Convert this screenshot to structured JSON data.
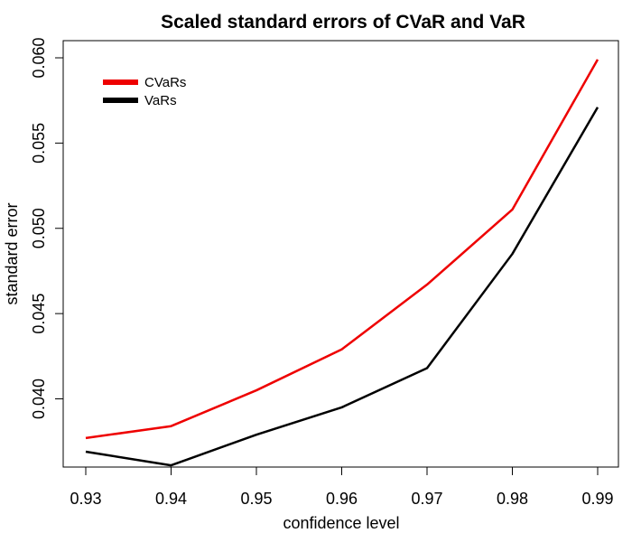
{
  "chart_data": {
    "type": "line",
    "title": "Scaled standard errors of CVaR and VaR",
    "xlabel": "confidence level",
    "ylabel": "standard error",
    "x": [
      0.93,
      0.94,
      0.95,
      0.96,
      0.97,
      0.98,
      0.99
    ],
    "x_ticks": [
      "0.93",
      "0.94",
      "0.95",
      "0.96",
      "0.97",
      "0.98",
      "0.99"
    ],
    "y_ticks": [
      "0.040",
      "0.045",
      "0.050",
      "0.055",
      "0.060"
    ],
    "y_tick_values": [
      0.04,
      0.045,
      0.05,
      0.055,
      0.06
    ],
    "xlim": [
      0.93,
      0.99
    ],
    "ylim": [
      0.036,
      0.06
    ],
    "grid": false,
    "legend_position": "top-left",
    "series": [
      {
        "name": "CVaRs",
        "color": "#ee0000",
        "values": [
          0.0377,
          0.0384,
          0.0405,
          0.0429,
          0.0467,
          0.0511,
          0.0599
        ]
      },
      {
        "name": "VaRs",
        "color": "#000000",
        "values": [
          0.0369,
          0.0361,
          0.0379,
          0.0395,
          0.0418,
          0.0485,
          0.0571
        ]
      }
    ]
  }
}
